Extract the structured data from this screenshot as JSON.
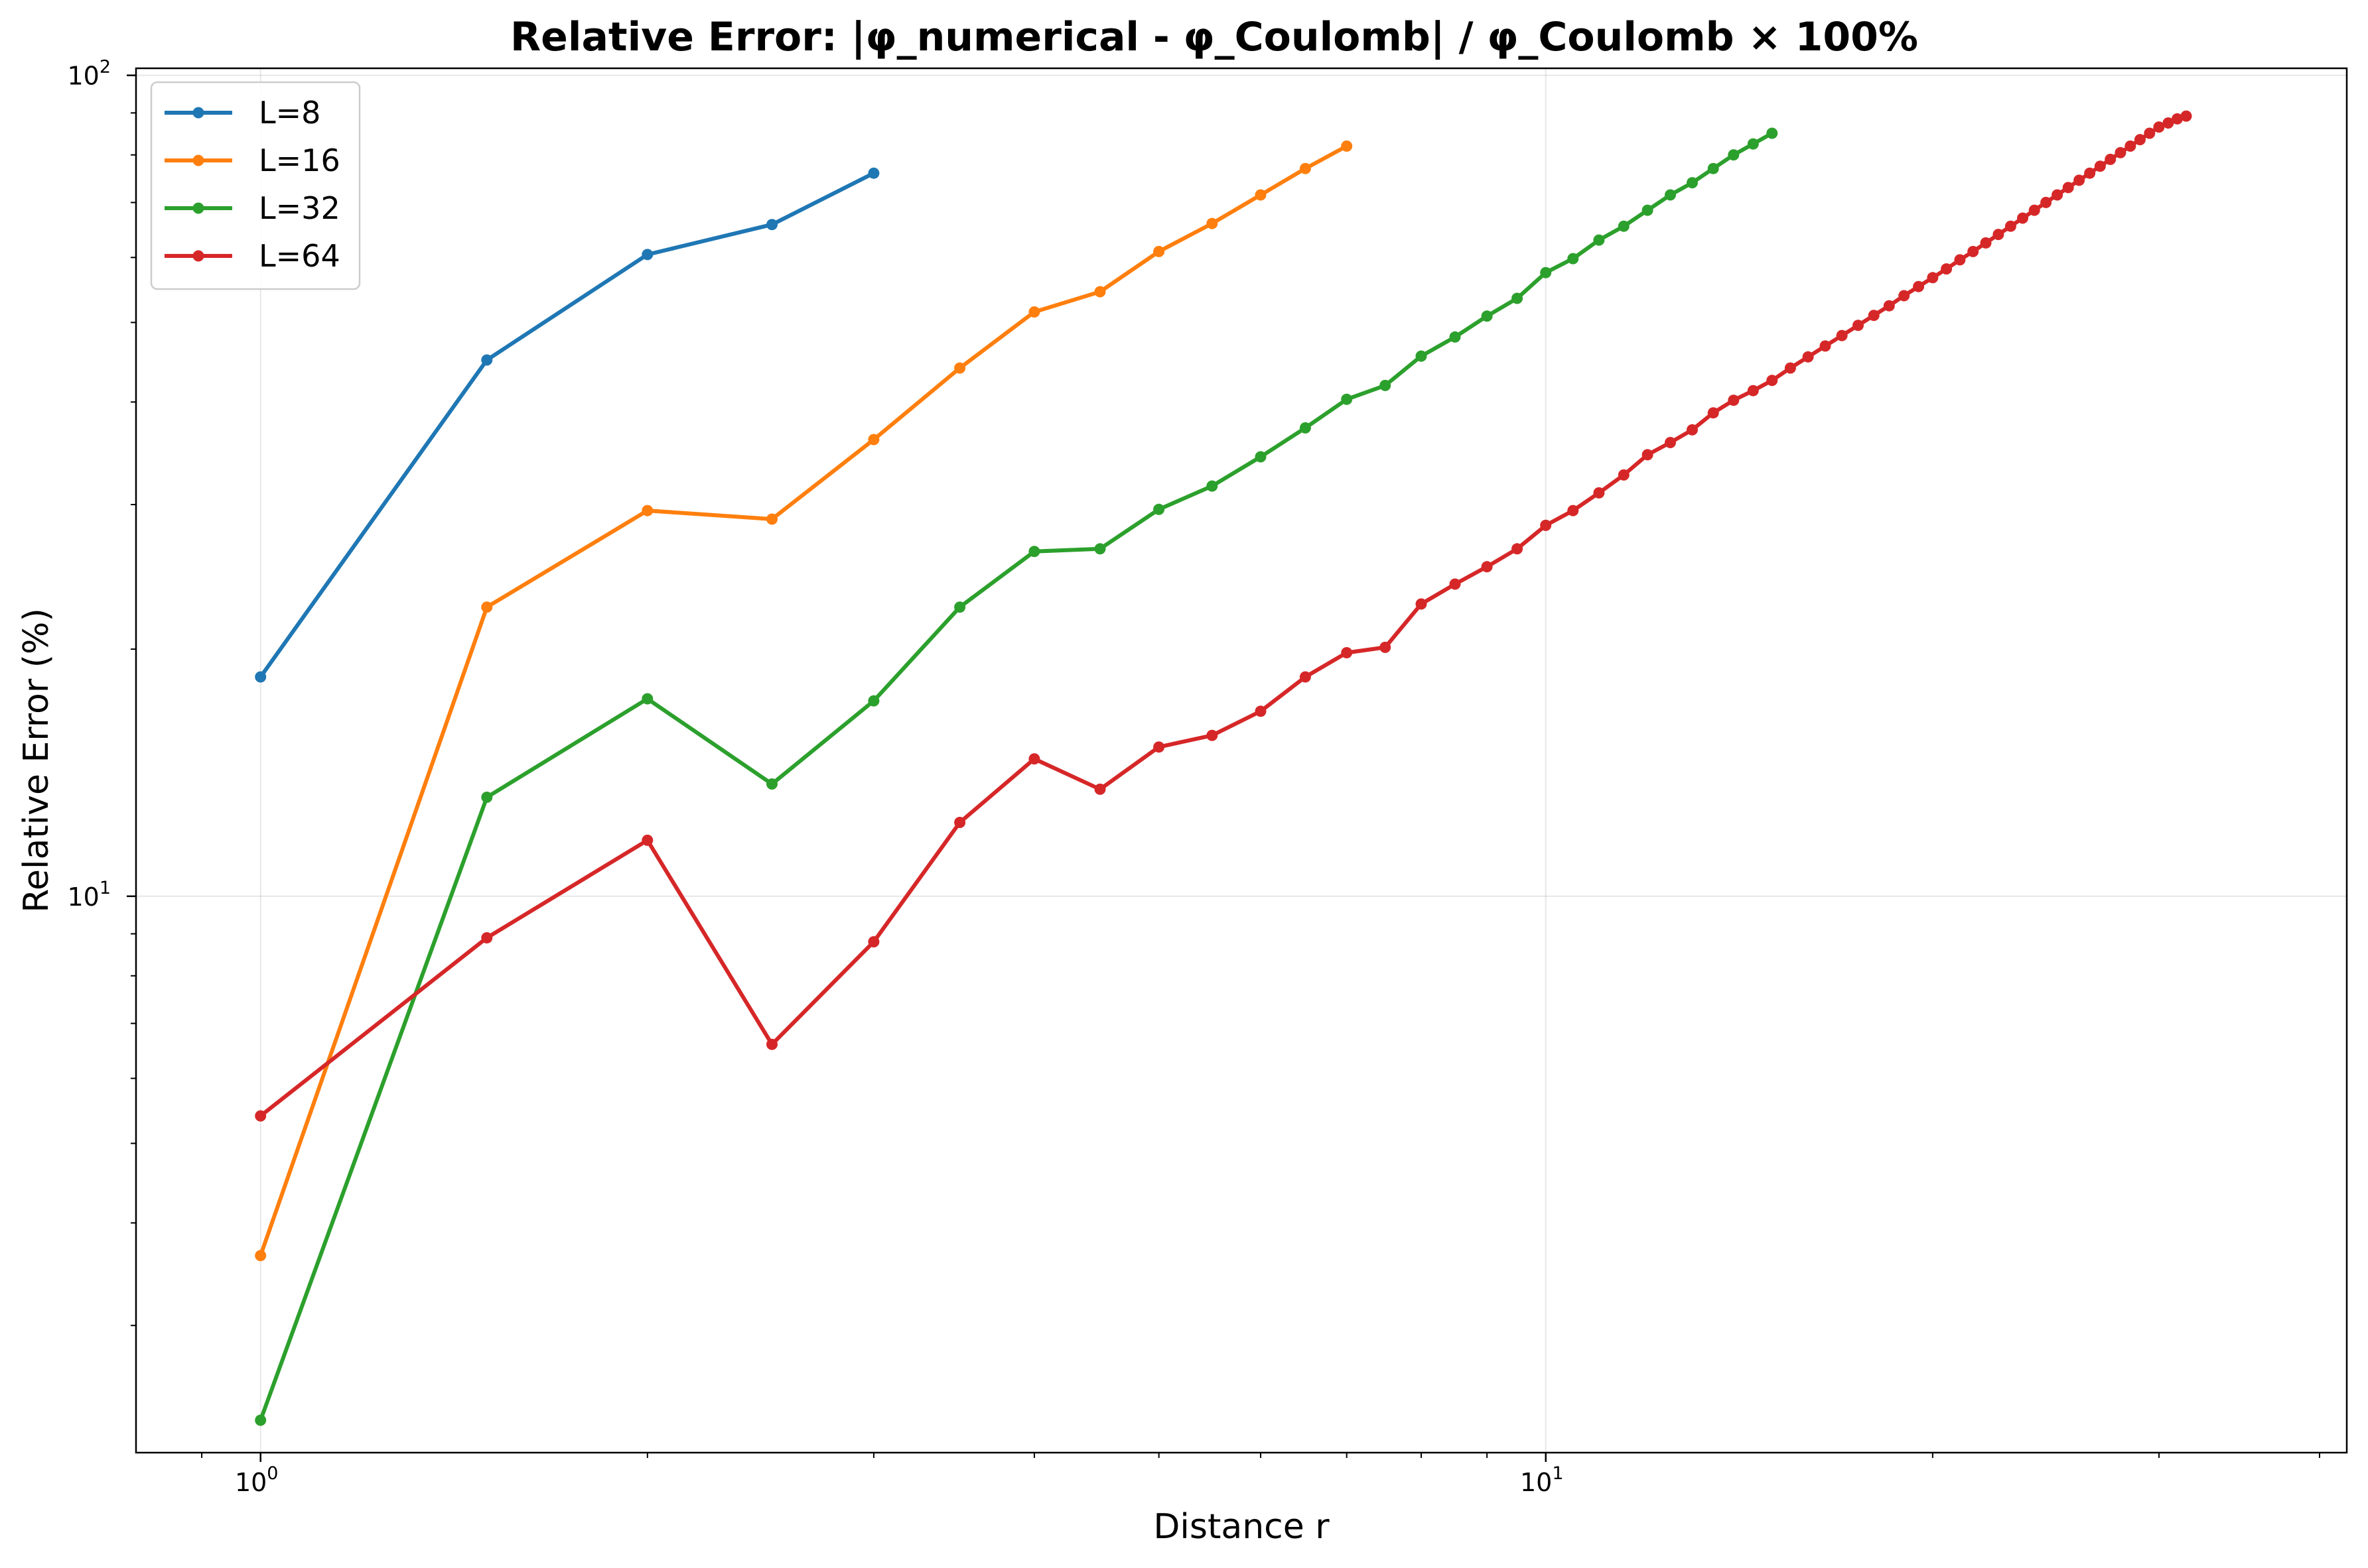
{
  "chart_data": {
    "type": "line",
    "title": "Relative Error: |φ_numerical - φ_Coulomb| / φ_Coulomb × 100%",
    "xlabel": "Distance r",
    "ylabel": "Relative Error (%)",
    "xscale": "log",
    "yscale": "log",
    "xlim": [
      0.8,
      42
    ],
    "ylim": [
      2.1,
      102
    ],
    "grid": true,
    "legend_position": "top-left",
    "x_ticks": [
      {
        "base": "10",
        "exp": "0",
        "value": 1
      },
      {
        "base": "10",
        "exp": "1",
        "value": 10
      }
    ],
    "y_ticks": [
      {
        "base": "10",
        "exp": "1",
        "value": 10
      },
      {
        "base": "10",
        "exp": "2",
        "value": 100
      }
    ],
    "series": [
      {
        "name": "L=8",
        "color": "#1f77b4",
        "x": [
          1,
          1.5,
          2,
          2.5,
          3
        ],
        "y": [
          18.5,
          45.0,
          60.5,
          65.8,
          76.0
        ]
      },
      {
        "name": "L=16",
        "color": "#ff7f0e",
        "x": [
          1,
          1.5,
          2,
          2.5,
          3,
          3.5,
          4,
          4.5,
          5,
          5.5,
          6,
          6.5,
          7
        ],
        "y": [
          3.65,
          22.5,
          29.5,
          28.8,
          36.0,
          44.0,
          51.5,
          54.5,
          61.0,
          66.0,
          71.5,
          77.0,
          82.0
        ]
      },
      {
        "name": "L=32",
        "color": "#2ca02c",
        "x": [
          1,
          1.5,
          2,
          2.5,
          3,
          3.5,
          4,
          4.5,
          5,
          5.5,
          6,
          6.5,
          7,
          7.5,
          8,
          8.5,
          9,
          9.5,
          10,
          10.5,
          11,
          11.5,
          12,
          12.5,
          13,
          13.5,
          14,
          14.5,
          15
        ],
        "y": [
          2.3,
          13.2,
          17.4,
          13.7,
          17.3,
          22.5,
          26.3,
          26.5,
          29.6,
          31.6,
          34.3,
          37.2,
          40.3,
          41.9,
          45.5,
          48.0,
          50.9,
          53.5,
          57.5,
          59.8,
          63.0,
          65.5,
          68.5,
          71.5,
          74.0,
          77.0,
          80.0,
          82.5,
          85.0
        ]
      },
      {
        "name": "L=64",
        "color": "#d62728",
        "x": [
          1,
          1.5,
          2,
          2.5,
          3,
          3.5,
          4,
          4.5,
          5,
          5.5,
          6,
          6.5,
          7,
          7.5,
          8,
          8.5,
          9,
          9.5,
          10,
          10.5,
          11,
          11.5,
          12,
          12.5,
          13,
          13.5,
          14,
          14.5,
          15,
          15.5,
          16,
          16.5,
          17,
          17.5,
          18,
          18.5,
          19,
          19.5,
          20,
          20.5,
          21,
          21.5,
          22,
          22.5,
          23,
          23.5,
          24,
          24.5,
          25,
          25.5,
          26,
          26.5,
          27,
          27.5,
          28,
          28.5,
          29,
          29.5,
          30,
          30.5,
          31,
          31.5
        ],
        "y": [
          5.4,
          8.9,
          11.7,
          6.6,
          8.8,
          12.3,
          14.7,
          13.5,
          15.2,
          15.7,
          16.8,
          18.5,
          19.8,
          20.1,
          22.7,
          24.0,
          25.2,
          26.5,
          28.3,
          29.5,
          31.0,
          32.6,
          34.5,
          35.7,
          37.0,
          38.8,
          40.2,
          41.3,
          42.5,
          44.0,
          45.4,
          46.8,
          48.2,
          49.6,
          51.0,
          52.4,
          53.9,
          55.3,
          56.7,
          58.1,
          59.6,
          61.0,
          62.5,
          64.0,
          65.5,
          67.0,
          68.5,
          70.0,
          71.5,
          73.0,
          74.5,
          76.0,
          77.5,
          79.0,
          80.5,
          82.0,
          83.5,
          85.0,
          86.5,
          87.5,
          88.5,
          89.2
        ]
      }
    ]
  }
}
